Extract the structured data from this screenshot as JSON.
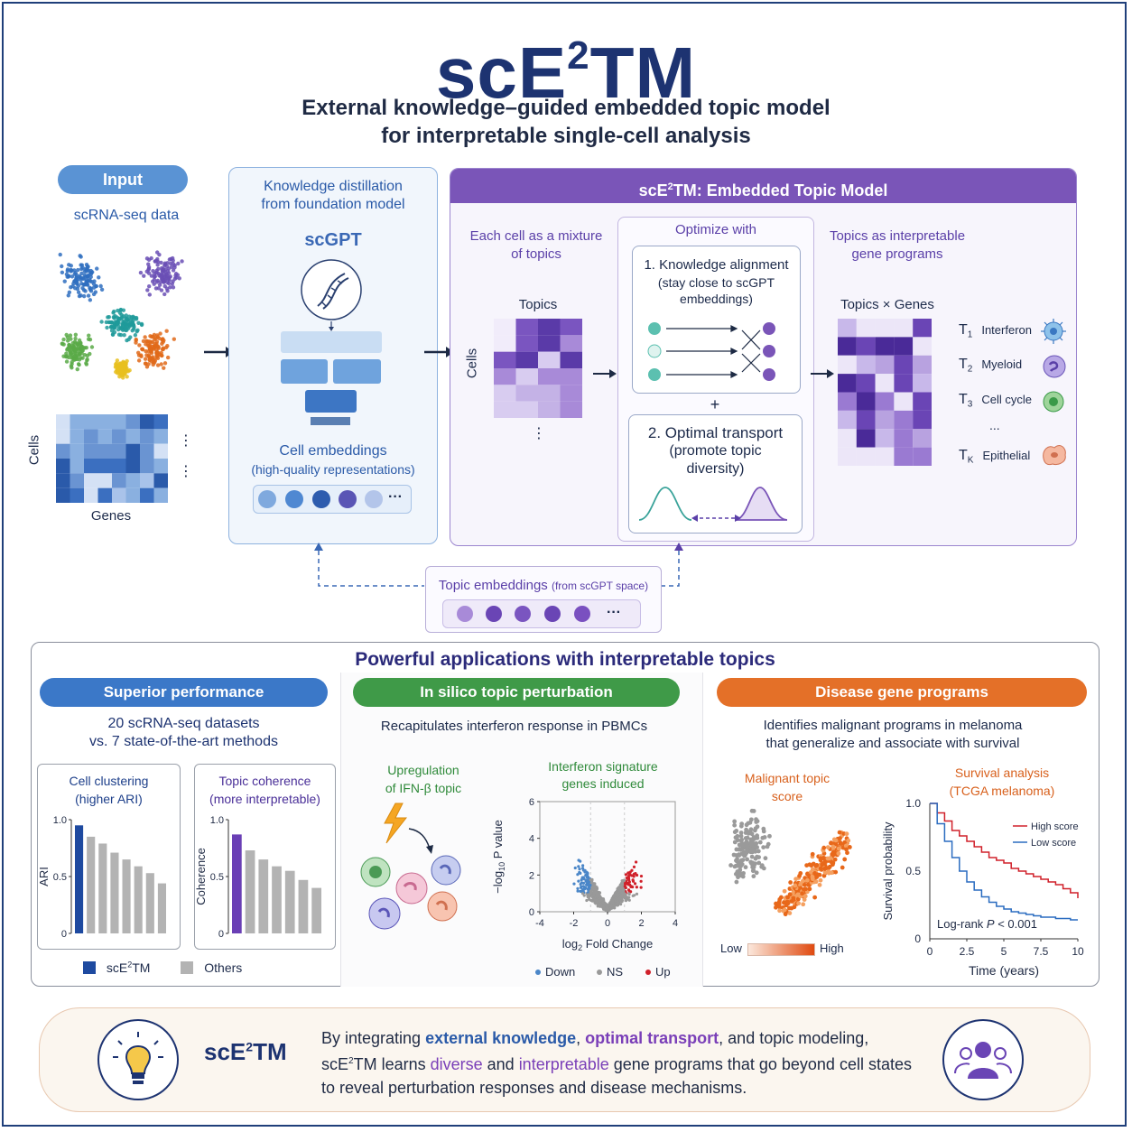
{
  "title": {
    "main": "scE",
    "sup": "2",
    "rest": "TM",
    "subtitle_1": "External knowledge–guided embedded topic model",
    "subtitle_2": "for interpretable single-cell analysis"
  },
  "input": {
    "pill": "Input",
    "label": "scRNA-seq data",
    "matrix_y": "Cells",
    "matrix_x": "Genes",
    "dots": "⋮"
  },
  "distill": {
    "title_1": "Knowledge distillation",
    "title_2": "from foundation model",
    "model": "scGPT",
    "emb_title": "Cell embeddings",
    "emb_sub": "(high-quality representations)",
    "ellipsis": "···"
  },
  "etm": {
    "header_pre": "scE",
    "header_sup": "2",
    "header_post": "TM: Embedded Topic Model",
    "mix_1": "Each cell as a mixture",
    "mix_2": "of topics",
    "topics_label": "Topics",
    "cells_label": "Cells",
    "vdots": "⋮",
    "optimize": "Optimize with",
    "ka_title": "1. Knowledge alignment",
    "ka_sub_1": "(stay close to scGPT",
    "ka_sub_2": "embeddings)",
    "plus": "+",
    "ot_1": "2. Optimal transport",
    "ot_2": "(promote topic",
    "ot_3": "diversity)",
    "prog_1": "Topics as interpretable",
    "prog_2": "gene programs",
    "tg_label": "Topics × Genes",
    "topics": [
      {
        "t": "T",
        "sub": "1",
        "name": "Interferon"
      },
      {
        "t": "T",
        "sub": "2",
        "name": "Myeloid"
      },
      {
        "t": "T",
        "sub": "3",
        "name": "Cell cycle"
      },
      {
        "t": "T",
        "sub": "K",
        "name": "Epithelial"
      }
    ],
    "topic_dots": "..."
  },
  "topic_emb": {
    "label": "Topic embeddings",
    "label_sub": "(from scGPT space)",
    "ellipsis": "···"
  },
  "apps": {
    "title": "Powerful applications with interpretable topics",
    "perf": {
      "pill": "Superior performance",
      "line_1": "20 scRNA-seq datasets",
      "line_2": "vs. 7 state-of-the-art methods",
      "legend_a_pre": "scE",
      "legend_a_sup": "2",
      "legend_a_post": "TM",
      "legend_b": "Others"
    },
    "pert": {
      "pill": "In silico topic perturbation",
      "desc": "Recapitulates interferon response in PBMCs",
      "up_1": "Upregulation",
      "up_2": "of IFN-β topic",
      "sig_1": "Interferon signature",
      "sig_2": "genes induced"
    },
    "disease": {
      "pill": "Disease gene programs",
      "desc_1": "Identifies malignant programs in melanoma",
      "desc_2": "that generalize and associate with survival",
      "score_1": "Malignant topic",
      "score_2": "score",
      "low": "Low",
      "high": "High"
    }
  },
  "chart_data": [
    {
      "type": "bar",
      "title": "Cell clustering",
      "subtitle": "(higher ARI)",
      "ylabel": "ARI",
      "ylim": [
        0,
        1.0
      ],
      "yticks": [
        "0",
        "0.5",
        "1.0"
      ],
      "values": [
        0.95,
        0.85,
        0.79,
        0.71,
        0.65,
        0.59,
        0.53,
        0.44
      ],
      "colors": [
        "#1e4aa0",
        "#b3b3b3",
        "#b3b3b3",
        "#b3b3b3",
        "#b3b3b3",
        "#b3b3b3",
        "#b3b3b3",
        "#b3b3b3"
      ]
    },
    {
      "type": "bar",
      "title": "Topic coherence",
      "subtitle": "(more interpretable)",
      "ylabel": "Coherence",
      "ylim": [
        0,
        1.0
      ],
      "yticks": [
        "0",
        "0.5",
        "1.0"
      ],
      "values": [
        0.87,
        0.73,
        0.65,
        0.59,
        0.55,
        0.47,
        0.4
      ],
      "colors": [
        "#6a3fb5",
        "#b3b3b3",
        "#b3b3b3",
        "#b3b3b3",
        "#b3b3b3",
        "#b3b3b3",
        "#b3b3b3"
      ]
    },
    {
      "type": "scatter",
      "title": "Volcano",
      "xlabel_pre": "log",
      "xlabel_sub": "2",
      "xlabel_post": " Fold Change",
      "ylabel_pre": "−log",
      "ylabel_sub": "10",
      "ylabel_post": " P value",
      "xlim": [
        -4,
        4
      ],
      "ylim": [
        0,
        6
      ],
      "xticks": [
        -4,
        -2,
        0,
        2,
        4
      ],
      "yticks": [
        0,
        2,
        4,
        6
      ],
      "legend": [
        "Down",
        "NS",
        "Up"
      ],
      "legend_colors": [
        "#4a86c8",
        "#999999",
        "#d0202a"
      ]
    },
    {
      "type": "line",
      "title_1": "Survival analysis",
      "title_2": "(TCGA melanoma)",
      "xlabel": "Time (years)",
      "ylabel": "Survival probability",
      "xlim": [
        0,
        10
      ],
      "ylim": [
        0,
        1.0
      ],
      "xticks": [
        "0",
        "2.5",
        "5",
        "7.5",
        "10"
      ],
      "yticks": [
        "0",
        "0.5",
        "1.0"
      ],
      "annotation_pre": "Log-rank ",
      "annotation_p": "P",
      "annotation_post": " < 0.001",
      "series": [
        {
          "name": "High score",
          "color": "#d0202a",
          "x": [
            0,
            0.5,
            1,
            1.5,
            2,
            2.5,
            3,
            3.5,
            4,
            4.5,
            5,
            5.5,
            6,
            6.5,
            7,
            7.5,
            8,
            8.5,
            9,
            9.5,
            10
          ],
          "y": [
            1.0,
            0.93,
            0.87,
            0.8,
            0.76,
            0.72,
            0.68,
            0.64,
            0.6,
            0.58,
            0.56,
            0.52,
            0.5,
            0.48,
            0.46,
            0.44,
            0.42,
            0.4,
            0.37,
            0.34,
            0.3
          ]
        },
        {
          "name": "Low score",
          "color": "#2a6cc0",
          "x": [
            0,
            0.5,
            1,
            1.5,
            2,
            2.5,
            3,
            3.5,
            4,
            4.5,
            5,
            5.5,
            6,
            6.5,
            7,
            7.5,
            8,
            8.5,
            9,
            9.5,
            10
          ],
          "y": [
            1.0,
            0.85,
            0.72,
            0.6,
            0.5,
            0.42,
            0.36,
            0.31,
            0.27,
            0.24,
            0.22,
            0.2,
            0.19,
            0.18,
            0.17,
            0.16,
            0.16,
            0.15,
            0.15,
            0.14,
            0.14
          ]
        }
      ]
    }
  ],
  "footer": {
    "brand_pre": "scE",
    "brand_sup": "2",
    "brand_post": "TM",
    "l1_a": "By integrating ",
    "l1_b": "external knowledge",
    "l1_c": ", ",
    "l1_d": "optimal transport",
    "l1_e": ", and topic modeling,",
    "l2_a": "scE",
    "l2_sup": "2",
    "l2_b": "TM learns ",
    "l2_c": "diverse",
    "l2_d": " and ",
    "l2_e": "interpretable",
    "l2_f": " gene programs that go beyond cell states",
    "l3": "to reveal perturbation responses and disease mechanisms."
  }
}
